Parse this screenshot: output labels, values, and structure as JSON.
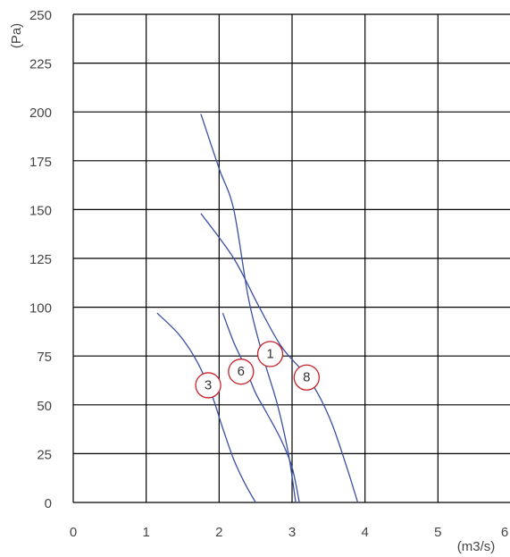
{
  "chart_data": {
    "type": "line",
    "title": "",
    "xlabel": "(m3/s)",
    "ylabel": "(Pa)",
    "xlim": [
      0,
      6
    ],
    "ylim": [
      0,
      250
    ],
    "x_ticks": [
      "0",
      "1",
      "2",
      "3",
      "4",
      "5",
      "6"
    ],
    "y_ticks": [
      "0",
      "25",
      "50",
      "75",
      "100",
      "125",
      "150",
      "175",
      "200",
      "225",
      "250"
    ],
    "grid": true,
    "colors": {
      "curve": "#3b4fa0",
      "marker": "#c8202a",
      "grid": "#000000"
    },
    "series": [
      {
        "label": "1",
        "marker_at": [
          2.7,
          76
        ],
        "points": [
          [
            1.75,
            199
          ],
          [
            2.0,
            171
          ],
          [
            2.2,
            150
          ],
          [
            2.4,
            105
          ],
          [
            2.6,
            75
          ],
          [
            2.8,
            50
          ],
          [
            2.95,
            25
          ],
          [
            3.05,
            0
          ]
        ]
      },
      {
        "label": "3",
        "marker_at": [
          1.85,
          60
        ],
        "points": [
          [
            1.15,
            97
          ],
          [
            1.45,
            86
          ],
          [
            1.7,
            72
          ],
          [
            1.9,
            55
          ],
          [
            2.05,
            38
          ],
          [
            2.2,
            22
          ],
          [
            2.35,
            10
          ],
          [
            2.5,
            0
          ]
        ]
      },
      {
        "label": "6",
        "marker_at": [
          2.3,
          67
        ],
        "points": [
          [
            2.05,
            97
          ],
          [
            2.2,
            82
          ],
          [
            2.35,
            70
          ],
          [
            2.5,
            56
          ],
          [
            2.65,
            46
          ],
          [
            2.85,
            32
          ],
          [
            3.0,
            18
          ],
          [
            3.1,
            0
          ]
        ]
      },
      {
        "label": "8",
        "marker_at": [
          3.2,
          64
        ],
        "points": [
          [
            1.75,
            148
          ],
          [
            2.2,
            125
          ],
          [
            2.55,
            100
          ],
          [
            2.85,
            80
          ],
          [
            3.15,
            67
          ],
          [
            3.35,
            56
          ],
          [
            3.55,
            40
          ],
          [
            3.75,
            18
          ],
          [
            3.9,
            0
          ]
        ]
      }
    ]
  }
}
